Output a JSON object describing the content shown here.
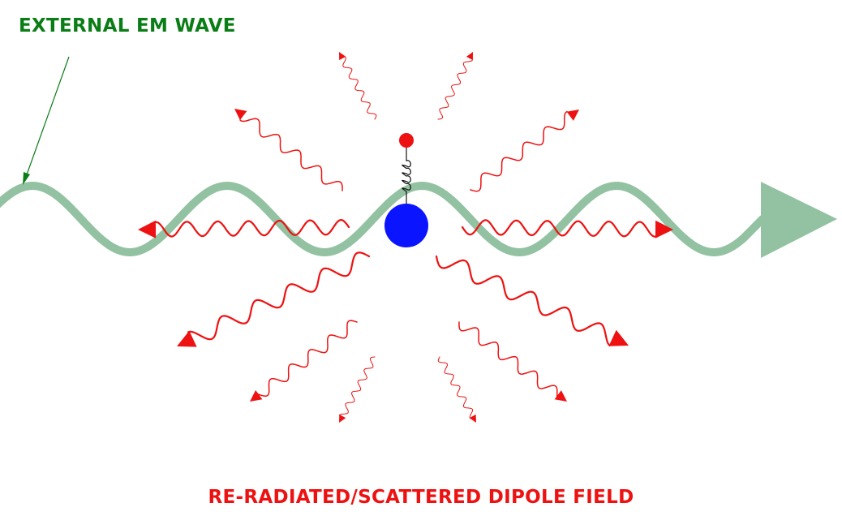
{
  "labels": {
    "external_wave": "EXTERNAL EM WAVE",
    "scattered_field": "RE-RADIATED/SCATTERED DIPOLE FIELD"
  },
  "colors": {
    "external_label": "#0a7d16",
    "incident_wave": "#93c2a2",
    "scattered_wave": "#ee1111",
    "scattered_label": "#ee1111",
    "charge_core": "#0a14ff",
    "electron": "#ee1111",
    "spring": "#111111",
    "pointer": "#0a7d16"
  },
  "icons": {
    "pointer": "arrow-pointer-icon",
    "spring": "spring-icon",
    "charge": "charge-circle-icon"
  }
}
